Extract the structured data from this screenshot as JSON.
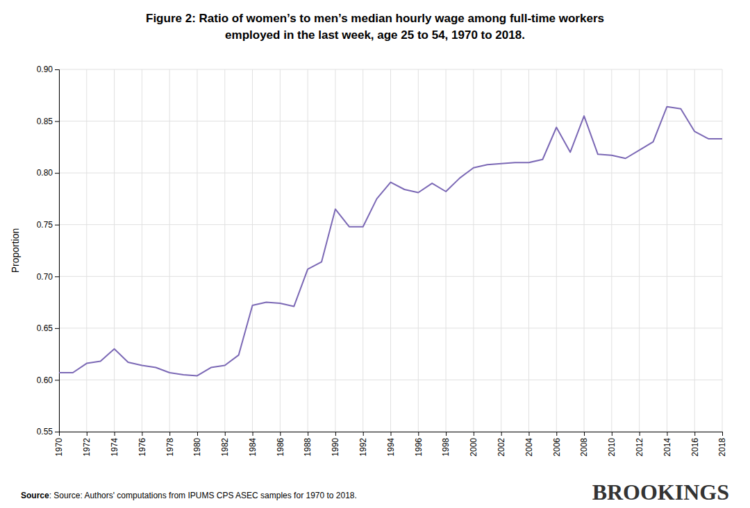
{
  "chart_data": {
    "type": "line",
    "title": "Figure 2: Ratio of women’s to men’s median hourly wage among full-time workers",
    "subtitle": "employed in the last week, age 25 to 54, 1970 to 2018.",
    "y_label": "Proportion",
    "annotations": [
      "Source",
      ": Source: Authors' computations from IPUMS CPS ASEC samples for 1970 to 2018.",
      "BROOKINGS"
    ],
    "color": "#7b68b5",
    "grid": true,
    "x": [
      1970,
      1971,
      1972,
      1973,
      1974,
      1975,
      1976,
      1977,
      1978,
      1979,
      1980,
      1981,
      1982,
      1983,
      1984,
      1985,
      1986,
      1987,
      1988,
      1989,
      1990,
      1991,
      1992,
      1993,
      1994,
      1995,
      1996,
      1997,
      1998,
      1999,
      2000,
      2001,
      2002,
      2003,
      2004,
      2005,
      2006,
      2007,
      2008,
      2009,
      2010,
      2011,
      2012,
      2013,
      2014,
      2015,
      2016,
      2017,
      2018
    ],
    "values": [
      0.607,
      0.607,
      0.616,
      0.618,
      0.63,
      0.617,
      0.614,
      0.612,
      0.607,
      0.605,
      0.604,
      0.612,
      0.614,
      0.624,
      0.672,
      0.675,
      0.674,
      0.671,
      0.707,
      0.714,
      0.765,
      0.748,
      0.748,
      0.775,
      0.791,
      0.784,
      0.781,
      0.79,
      0.782,
      0.795,
      0.805,
      0.808,
      0.809,
      0.81,
      0.81,
      0.813,
      0.844,
      0.82,
      0.855,
      0.818,
      0.817,
      0.814,
      0.822,
      0.83,
      0.864,
      0.862,
      0.84,
      0.833,
      0.833
    ],
    "xlim": [
      1970,
      2018
    ],
    "xticks": [
      1970,
      1972,
      1974,
      1976,
      1978,
      1980,
      1982,
      1984,
      1986,
      1988,
      1990,
      1992,
      1994,
      1996,
      1998,
      2000,
      2002,
      2004,
      2006,
      2008,
      2010,
      2012,
      2014,
      2016,
      2018
    ],
    "ylim": [
      0.55,
      0.9
    ],
    "yticks": [
      0.55,
      {
        "value": 0.6,
        "label": "0.60"
      },
      0.65,
      {
        "value": 0.7,
        "label": "0.70"
      },
      0.75,
      {
        "value": 0.8,
        "label": "0.80"
      },
      0.85,
      {
        "value": 0.9,
        "label": "0.90"
      }
    ]
  }
}
